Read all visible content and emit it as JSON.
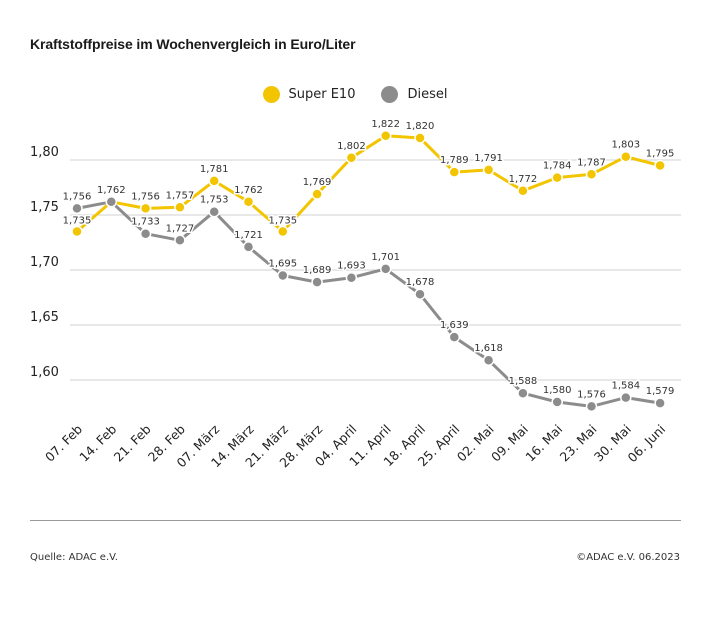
{
  "title": "Kraftstoffpreise im Wochenvergleich in Euro/Liter",
  "source": "Quelle: ADAC e.V.",
  "copyright": "©ADAC e.V. 06.2023",
  "colors": {
    "super": "#F2C500",
    "diesel": "#8C8C8C",
    "grid": "#d0d0d0"
  },
  "chart_data": {
    "type": "line",
    "title": "Kraftstoffpreise im Wochenvergleich in Euro/Liter",
    "xlabel": "",
    "ylabel": "",
    "categories": [
      "07. Feb",
      "14. Feb",
      "21. Feb",
      "28. Feb",
      "07. März",
      "14. März",
      "21. März",
      "28. März",
      "04. April",
      "11. April",
      "18. April",
      "25. April",
      "02. Mai",
      "09. Mai",
      "16. Mai",
      "23. Mai",
      "30. Mai",
      "06. Juni"
    ],
    "ylim": [
      1.55,
      1.85
    ],
    "yticks": [
      1.6,
      1.65,
      1.7,
      1.75,
      1.8
    ],
    "ytick_labels": [
      "1,60",
      "1,65",
      "1,70",
      "1,75",
      "1,80"
    ],
    "grid": true,
    "legend_placement": "top-center",
    "series": [
      {
        "name": "Super E10",
        "color": "#F2C500",
        "values": [
          1.735,
          1.762,
          1.756,
          1.757,
          1.781,
          1.762,
          1.735,
          1.769,
          1.802,
          1.822,
          1.82,
          1.789,
          1.791,
          1.772,
          1.784,
          1.787,
          1.803,
          1.795
        ],
        "labels": [
          "1,735",
          "1,762",
          "1,756",
          "1,757",
          "1,781",
          "1,762",
          "1,735",
          "1,769",
          "1,802",
          "1,822",
          "1,820",
          "1,789",
          "1,791",
          "1,772",
          "1,784",
          "1,787",
          "1,803",
          "1,795"
        ]
      },
      {
        "name": "Diesel",
        "color": "#8C8C8C",
        "values": [
          1.756,
          1.762,
          1.733,
          1.727,
          1.753,
          1.721,
          1.695,
          1.689,
          1.693,
          1.701,
          1.678,
          1.639,
          1.618,
          1.588,
          1.58,
          1.576,
          1.584,
          1.579
        ],
        "labels": [
          "1,756",
          "1,762",
          "1,733",
          "1,727",
          "1,753",
          "1,721",
          "1,695",
          "1,689",
          "1,693",
          "1,701",
          "1,678",
          "1,639",
          "1,618",
          "1,588",
          "1,580",
          "1,576",
          "1,584",
          "1,579"
        ]
      }
    ]
  }
}
